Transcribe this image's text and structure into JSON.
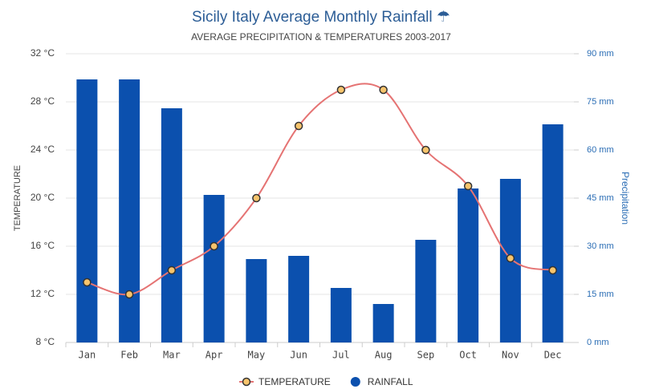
{
  "chart_data": {
    "type": "bar-line",
    "title": "Sicily Italy Average Monthly Rainfall ☂",
    "subtitle": "AVERAGE PRECIPITATION & TEMPERATURES 2003-2017",
    "y_label": "TEMPERATURE",
    "y2_label": "Precipitation",
    "categories": [
      "Jan",
      "Feb",
      "Mar",
      "Apr",
      "May",
      "Jun",
      "Jul",
      "Aug",
      "Sep",
      "Oct",
      "Nov",
      "Dec"
    ],
    "series": [
      {
        "name": "TEMPERATURE",
        "type": "line",
        "color": "#e57373",
        "marker_color": "#f7c46c",
        "values": [
          13,
          12,
          14,
          16,
          20,
          26,
          29,
          29,
          24,
          21,
          15,
          14
        ]
      },
      {
        "name": "RAINFALL",
        "type": "bar",
        "axis": "y2",
        "color": "#0b50ae",
        "values": [
          82,
          82,
          73,
          46,
          26,
          27,
          17,
          12,
          32,
          48,
          51,
          68
        ]
      }
    ],
    "ylim": [
      8,
      32
    ],
    "yticks": [
      {
        "value": 8,
        "label": "8 °C"
      },
      {
        "value": 12,
        "label": "12 °C"
      },
      {
        "value": 16,
        "label": "16 °C"
      },
      {
        "value": 20,
        "label": "20 °C"
      },
      {
        "value": 24,
        "label": "24 °C"
      },
      {
        "value": 28,
        "label": "28 °C"
      },
      {
        "value": 32,
        "label": "32 °C"
      }
    ],
    "y2lim": [
      0,
      90
    ],
    "y2ticks": [
      {
        "value": 0,
        "label": "0 mm"
      },
      {
        "value": 15,
        "label": "15 mm"
      },
      {
        "value": 30,
        "label": "30 mm"
      },
      {
        "value": 45,
        "label": "45 mm"
      },
      {
        "value": 60,
        "label": "60 mm"
      },
      {
        "value": 75,
        "label": "75 mm"
      },
      {
        "value": 90,
        "label": "90 mm"
      }
    ],
    "grid": true
  }
}
